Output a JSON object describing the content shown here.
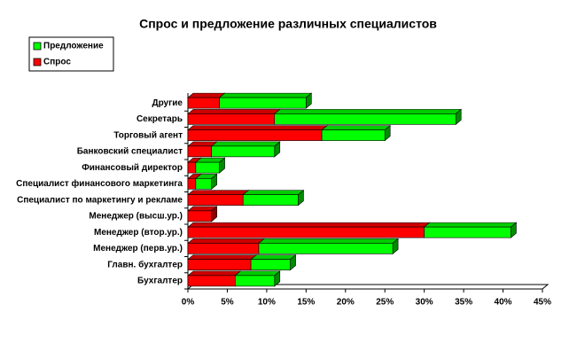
{
  "chart_data": {
    "type": "bar",
    "orientation": "horizontal",
    "stacked": true,
    "three_d": true,
    "title": "Спрос и предложение различных специалистов",
    "categories": [
      "Бухгалтер",
      "Главн. бухгалтер",
      "Менеджер (перв.ур.)",
      "Менеджер (втор.ур.)",
      "Менеджер (высш.ур.)",
      "Специалист по маркетингу и рекламе",
      "Специалист финансового маркетинга",
      "Финансовый директор",
      "Банковский специалист",
      "Торговый агент",
      "Секретарь",
      "Другие"
    ],
    "series": [
      {
        "name": "Предложение",
        "color": "#00ff00",
        "values": [
          5,
          5,
          17,
          11,
          0,
          7,
          2,
          3,
          8,
          8,
          23,
          11
        ]
      },
      {
        "name": "Спрос",
        "color": "#ff0000",
        "values": [
          6,
          8,
          9,
          30,
          3,
          7,
          1,
          1,
          3,
          17,
          11,
          4
        ]
      }
    ],
    "xlim": [
      0,
      45
    ],
    "xticks": [
      {
        "value": 0,
        "label": "0%"
      },
      {
        "value": 5,
        "label": "5%"
      },
      {
        "value": 10,
        "label": "10%"
      },
      {
        "value": 15,
        "label": "15%"
      },
      {
        "value": 20,
        "label": "20%"
      },
      {
        "value": 25,
        "label": "25%"
      },
      {
        "value": 30,
        "label": "30%"
      },
      {
        "value": 35,
        "label": "35%"
      },
      {
        "value": 40,
        "label": "40%"
      },
      {
        "value": 45,
        "label": "45%"
      }
    ],
    "legend": "top-left"
  }
}
